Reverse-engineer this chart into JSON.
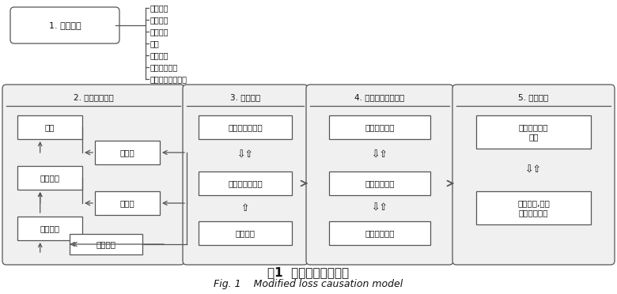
{
  "bg": "#ffffff",
  "edge": "#555555",
  "title_zh": "图1  损失源起修正模型",
  "title_en": "Fig. 1    Modified loss causation model",
  "env_label": "1. 环境变量",
  "branch_items": [
    "工作性质",
    "工作方法",
    "结构类型",
    "材料",
    "设备类型",
    "相互作业类型",
    "作业间的相互影响"
  ],
  "panel_labels": [
    "2. 事件发生顺序",
    "3. 直接原因",
    "4. 安全管理系统缺陷",
    "5. 根本原因"
  ],
  "p1_inner": [
    "后果",
    "触发事件",
    "偶然事件",
    "接触后",
    "接触前",
    "事故预防"
  ],
  "p2_inner": [
    "物的不安全状态",
    "人的不安全行为",
    "个人原因"
  ],
  "p3_inner": [
    "缺少管理手段",
    "管理措施缺略",
    "执行上的缺略"
  ],
  "p4_inner_a": "与工作有关的\n原因",
  "p4_inner_b": "个人原因,组织\n策略上的失误",
  "ud_arrow": "⇩⇧",
  "u_arrow": "⇧"
}
